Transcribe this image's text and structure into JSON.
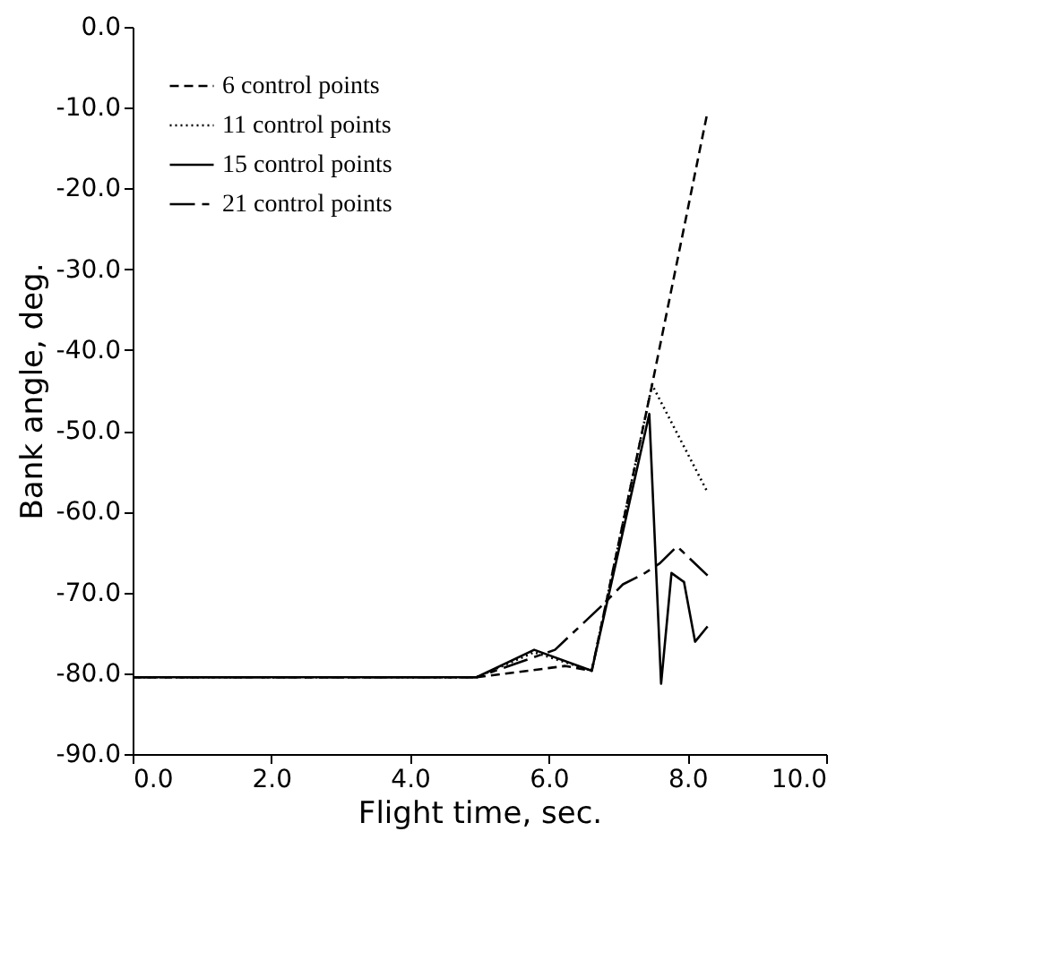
{
  "chart_data": {
    "type": "line",
    "xlabel": "Flight time, sec.",
    "ylabel": "Bank angle, deg.",
    "xlim": [
      0,
      10
    ],
    "ylim": [
      -90,
      0
    ],
    "xticks": [
      {
        "value": 0,
        "label": "0.0"
      },
      {
        "value": 2,
        "label": "2.0"
      },
      {
        "value": 4,
        "label": "4.0"
      },
      {
        "value": 6,
        "label": "6.0"
      },
      {
        "value": 8,
        "label": "8.0"
      },
      {
        "value": 10,
        "label": "10.0"
      }
    ],
    "yticks": [
      {
        "value": 0,
        "label": "0.0"
      },
      {
        "value": -10,
        "label": "-10.0"
      },
      {
        "value": -20,
        "label": "-20.0"
      },
      {
        "value": -30,
        "label": "-30.0"
      },
      {
        "value": -40,
        "label": "-40.0"
      },
      {
        "value": -50,
        "label": "-50.0"
      },
      {
        "value": -60,
        "label": "-60.0"
      },
      {
        "value": -70,
        "label": "-70.0"
      },
      {
        "value": -80,
        "label": "-80.0"
      },
      {
        "value": -90,
        "label": "-90.0"
      }
    ],
    "grid": false,
    "legend": "top left",
    "marker": "none",
    "series": [
      {
        "name": "6 control points",
        "color": "#000000",
        "line_style": "dashed",
        "x": [
          0,
          4.96,
          6.24,
          6.62,
          7.49,
          8.29
        ],
        "values": [
          -80.5,
          -80.5,
          -79.1,
          -79.7,
          -44.3,
          -10.5
        ]
      },
      {
        "name": "11 control points",
        "color": "#000000",
        "line_style": "dotted",
        "x": [
          0,
          4.96,
          5.79,
          6.62,
          7.49,
          8.29
        ],
        "values": [
          -80.5,
          -80.5,
          -77.4,
          -79.7,
          -44.3,
          -57.6
        ]
      },
      {
        "name": "15 control points",
        "color": "#000000",
        "line_style": "solid",
        "x": [
          0,
          4.96,
          5.79,
          6.62,
          7.45,
          7.62,
          7.77,
          7.95,
          8.11,
          8.29
        ],
        "values": [
          -80.5,
          -80.5,
          -77.1,
          -79.7,
          -47.9,
          -81.3,
          -67.6,
          -68.7,
          -76.1,
          -74.2
        ]
      },
      {
        "name": "21 control points",
        "color": "#000000",
        "line_style": "longdash",
        "x": [
          0,
          4.96,
          6.09,
          6.77,
          7.07,
          7.37,
          7.6,
          7.85,
          8.29
        ],
        "values": [
          -80.5,
          -80.5,
          -77.1,
          -71.6,
          -69.0,
          -67.7,
          -66.4,
          -64.3,
          -67.9
        ]
      }
    ]
  }
}
